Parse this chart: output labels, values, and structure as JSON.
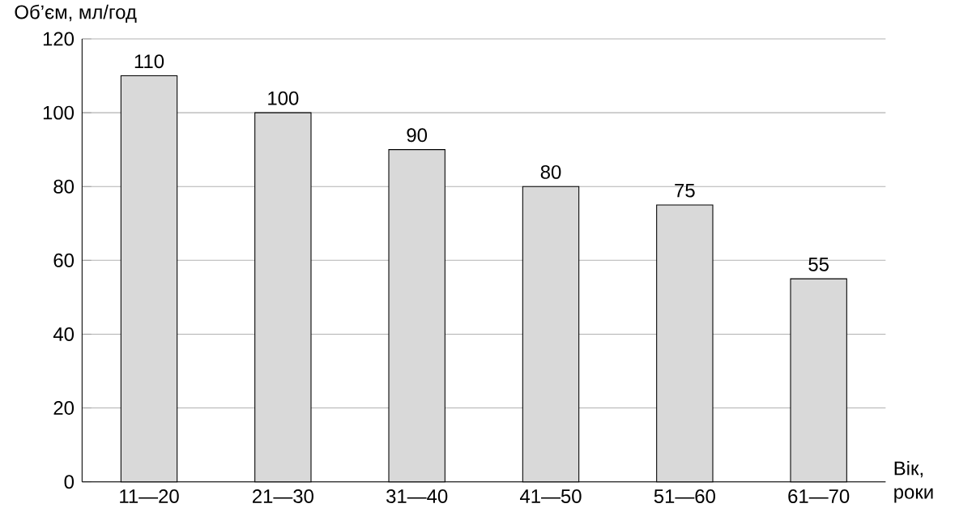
{
  "chart_data": {
    "type": "bar",
    "ylabel": "Об’єм, мл/год",
    "xlabel": "Вік, роки",
    "categories": [
      "11—20",
      "21—30",
      "31—40",
      "41—50",
      "51—60",
      "61—70"
    ],
    "values": [
      110,
      100,
      90,
      80,
      75,
      55
    ],
    "color": "#d9d9d9",
    "ylim": [
      0,
      120
    ],
    "yticks": [
      0,
      20,
      40,
      60,
      80,
      100,
      120
    ],
    "grid": "y",
    "data_labels": true
  }
}
